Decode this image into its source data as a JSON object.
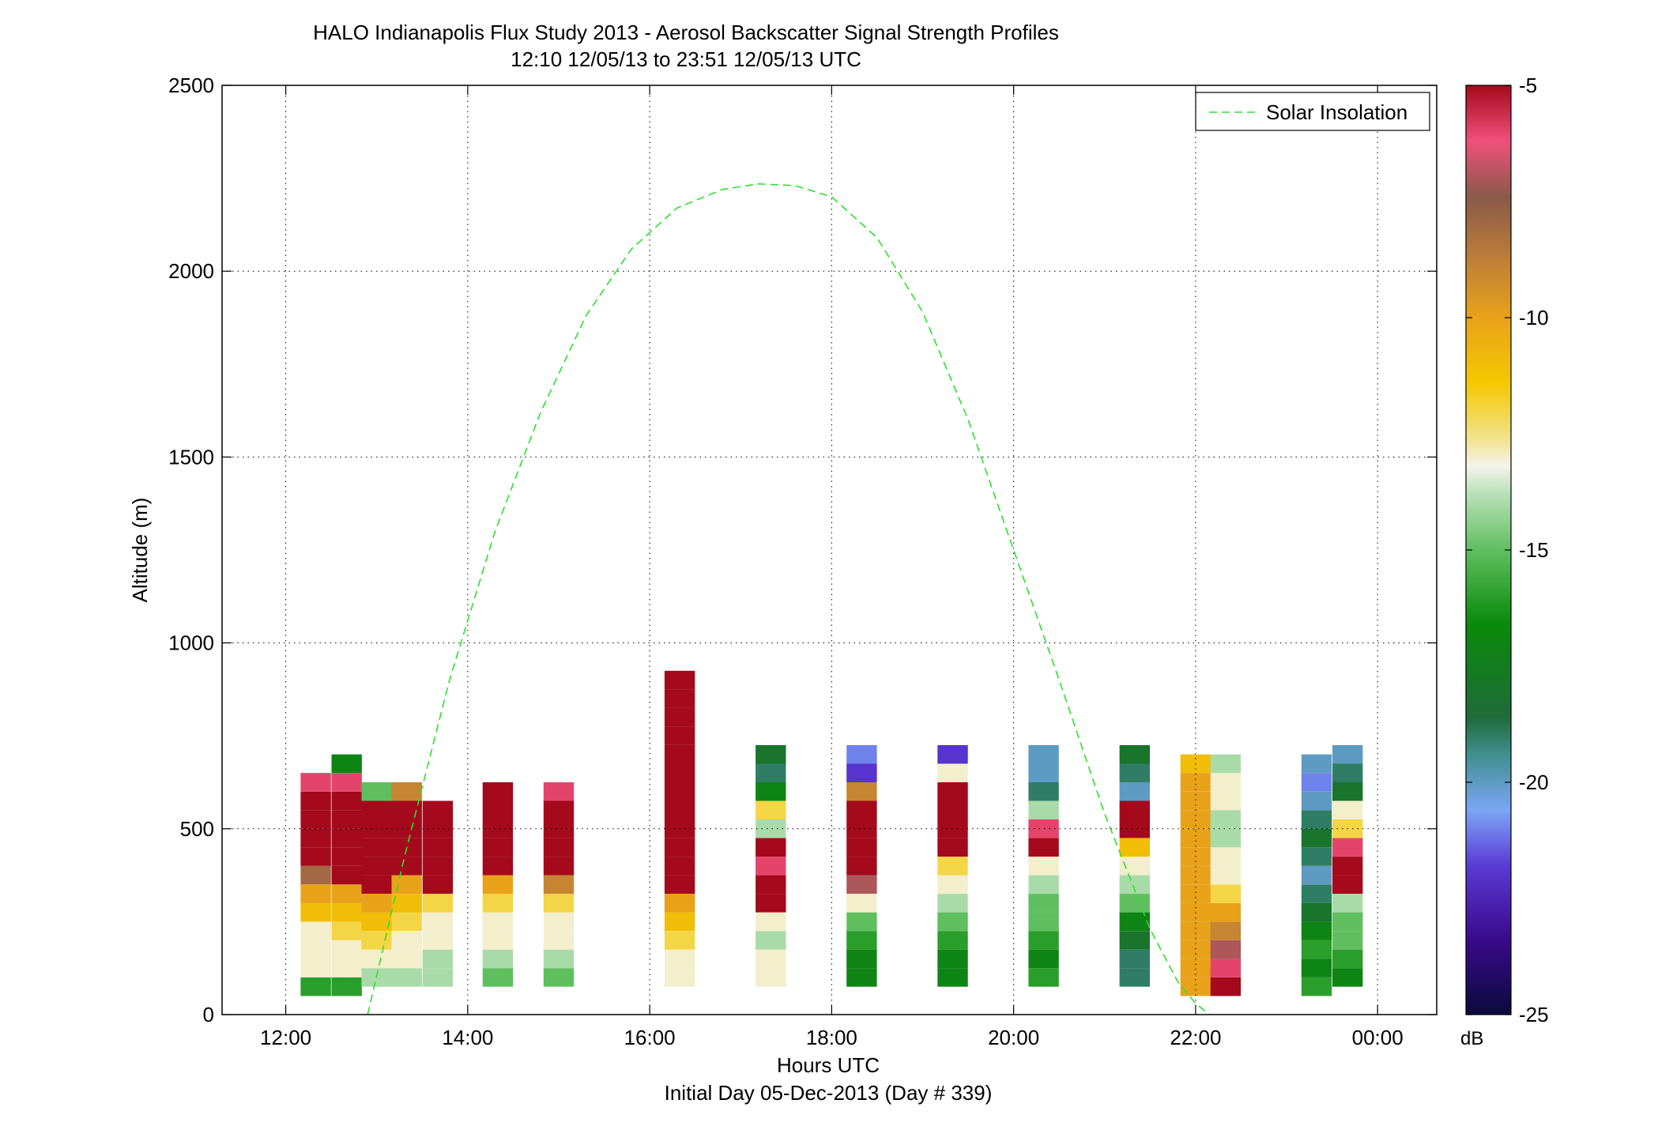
{
  "chart_data": {
    "type": "heatmap",
    "title": "HALO Indianapolis Flux Study 2013 - Aerosol Backscatter Signal Strength Profiles",
    "subtitle": "12:10 12/05/13 to 23:51 12/05/13  UTC",
    "xlabel": "Hours UTC",
    "xlabel2": "Initial Day 05-Dec-2013 (Day # 339)",
    "ylabel": "Altitude (m)",
    "xlim": [
      11.3,
      24.65
    ],
    "ylim": [
      0,
      2500
    ],
    "x_ticks": [
      12,
      14,
      16,
      18,
      20,
      22,
      24
    ],
    "x_tick_labels": [
      "12:00",
      "14:00",
      "16:00",
      "18:00",
      "20:00",
      "22:00",
      "00:00"
    ],
    "y_ticks": [
      0,
      500,
      1000,
      1500,
      2000,
      2500
    ],
    "y_tick_labels": [
      "0",
      "500",
      "1000",
      "1500",
      "2000",
      "2500"
    ],
    "grid": true,
    "legend": {
      "position": "top-right",
      "entries": [
        "Solar Insolation"
      ]
    },
    "colorbar": {
      "unit": "dB",
      "range": [
        -25,
        -5
      ],
      "ticks": [
        -5,
        -10,
        -15,
        -20,
        -25
      ],
      "tick_labels": [
        "-5",
        "-10",
        "-15",
        "-20",
        "-25"
      ]
    },
    "solar_insolation_curve": {
      "hours": [
        12.9,
        13.3,
        13.8,
        14.3,
        14.8,
        15.3,
        15.8,
        16.3,
        16.8,
        17.2,
        17.6,
        18.0,
        18.5,
        19.0,
        19.5,
        20.0,
        20.5,
        21.0,
        21.5,
        21.8,
        22.0,
        22.15
      ],
      "altitude_m": [
        0,
        420,
        900,
        1300,
        1620,
        1880,
        2060,
        2170,
        2220,
        2235,
        2230,
        2200,
        2090,
        1890,
        1600,
        1250,
        900,
        540,
        230,
        90,
        30,
        0
      ]
    },
    "columns": [
      {
        "hour": 12.33,
        "bottom_m": 50,
        "profile_db": [
          -16,
          -13,
          -13,
          -13,
          -11,
          -10,
          -8,
          -5,
          -5,
          -5,
          -5,
          -6
        ]
      },
      {
        "hour": 12.67,
        "bottom_m": 50,
        "profile_db": [
          -16,
          -13,
          -13,
          -12,
          -11,
          -10,
          -5,
          -5,
          -5,
          -5,
          -5,
          -6,
          -17
        ]
      },
      {
        "hour": 13.0,
        "bottom_m": 75,
        "profile_db": [
          -14,
          -13,
          -12,
          -11,
          -10,
          -5,
          -5,
          -5,
          -5,
          -5,
          -15
        ]
      },
      {
        "hour": 13.33,
        "bottom_m": 75,
        "profile_db": [
          -14,
          -13,
          -13,
          -12,
          -11,
          -10,
          -5,
          -5,
          -5,
          -5,
          -9
        ]
      },
      {
        "hour": 13.67,
        "bottom_m": 75,
        "profile_db": [
          -14,
          -14,
          -13,
          -13,
          -12,
          -5,
          -5,
          -5,
          -5,
          -5
        ]
      },
      {
        "hour": 14.33,
        "bottom_m": 75,
        "profile_db": [
          -15,
          -14,
          -13,
          -13,
          -12,
          -10,
          -5,
          -5,
          -5,
          -5,
          -5
        ]
      },
      {
        "hour": 15.0,
        "bottom_m": 75,
        "profile_db": [
          -15,
          -14,
          -13,
          -13,
          -12,
          -9,
          -5,
          -5,
          -5,
          -5,
          -6
        ]
      },
      {
        "hour": 16.33,
        "bottom_m": 75,
        "profile_db": [
          -13,
          -13,
          -12,
          -11,
          -10,
          -5,
          -5,
          -5,
          -5,
          -5,
          -5,
          -5,
          -5,
          -5,
          -5,
          -5,
          -5
        ]
      },
      {
        "hour": 17.33,
        "bottom_m": 75,
        "profile_db": [
          -13,
          -13,
          -14,
          -13,
          -5,
          -5,
          -6,
          -5,
          -14,
          -12,
          -17,
          -19,
          -18
        ]
      },
      {
        "hour": 18.33,
        "bottom_m": 75,
        "profile_db": [
          -17,
          -17,
          -16,
          -15,
          -13,
          -7,
          -5,
          -5,
          -5,
          -5,
          -9,
          -22,
          -21
        ]
      },
      {
        "hour": 19.33,
        "bottom_m": 75,
        "profile_db": [
          -17,
          -17,
          -16,
          -15,
          -14,
          -13,
          -12,
          -5,
          -5,
          -5,
          -5,
          -13,
          -22
        ]
      },
      {
        "hour": 20.33,
        "bottom_m": 75,
        "profile_db": [
          -16,
          -17,
          -16,
          -15,
          -15,
          -14,
          -13,
          -5,
          -6,
          -14,
          -19,
          -20,
          -20
        ]
      },
      {
        "hour": 21.33,
        "bottom_m": 75,
        "profile_db": [
          -19,
          -19,
          -18,
          -17,
          -15,
          -14,
          -13,
          -11,
          -5,
          -5,
          -20,
          -19,
          -18
        ]
      },
      {
        "hour": 22.0,
        "bottom_m": 50,
        "profile_db": [
          -10,
          -10,
          -10,
          -10,
          -10,
          -10,
          -10,
          -10,
          -10,
          -10,
          -10,
          -10,
          -11
        ]
      },
      {
        "hour": 22.33,
        "bottom_m": 50,
        "profile_db": [
          -5,
          -6,
          -7,
          -9,
          -10,
          -12,
          -13,
          -13,
          -14,
          -14,
          -13,
          -13,
          -14
        ]
      },
      {
        "hour": 23.33,
        "bottom_m": 50,
        "profile_db": [
          -16,
          -17,
          -16,
          -17,
          -18,
          -19,
          -20,
          -19,
          -18,
          -19,
          -20,
          -21,
          -20
        ]
      },
      {
        "hour": 23.67,
        "bottom_m": 75,
        "profile_db": [
          -17,
          -16,
          -15,
          -15,
          -14,
          -5,
          -5,
          -6,
          -12,
          -13,
          -18,
          -19,
          -20
        ]
      }
    ]
  }
}
